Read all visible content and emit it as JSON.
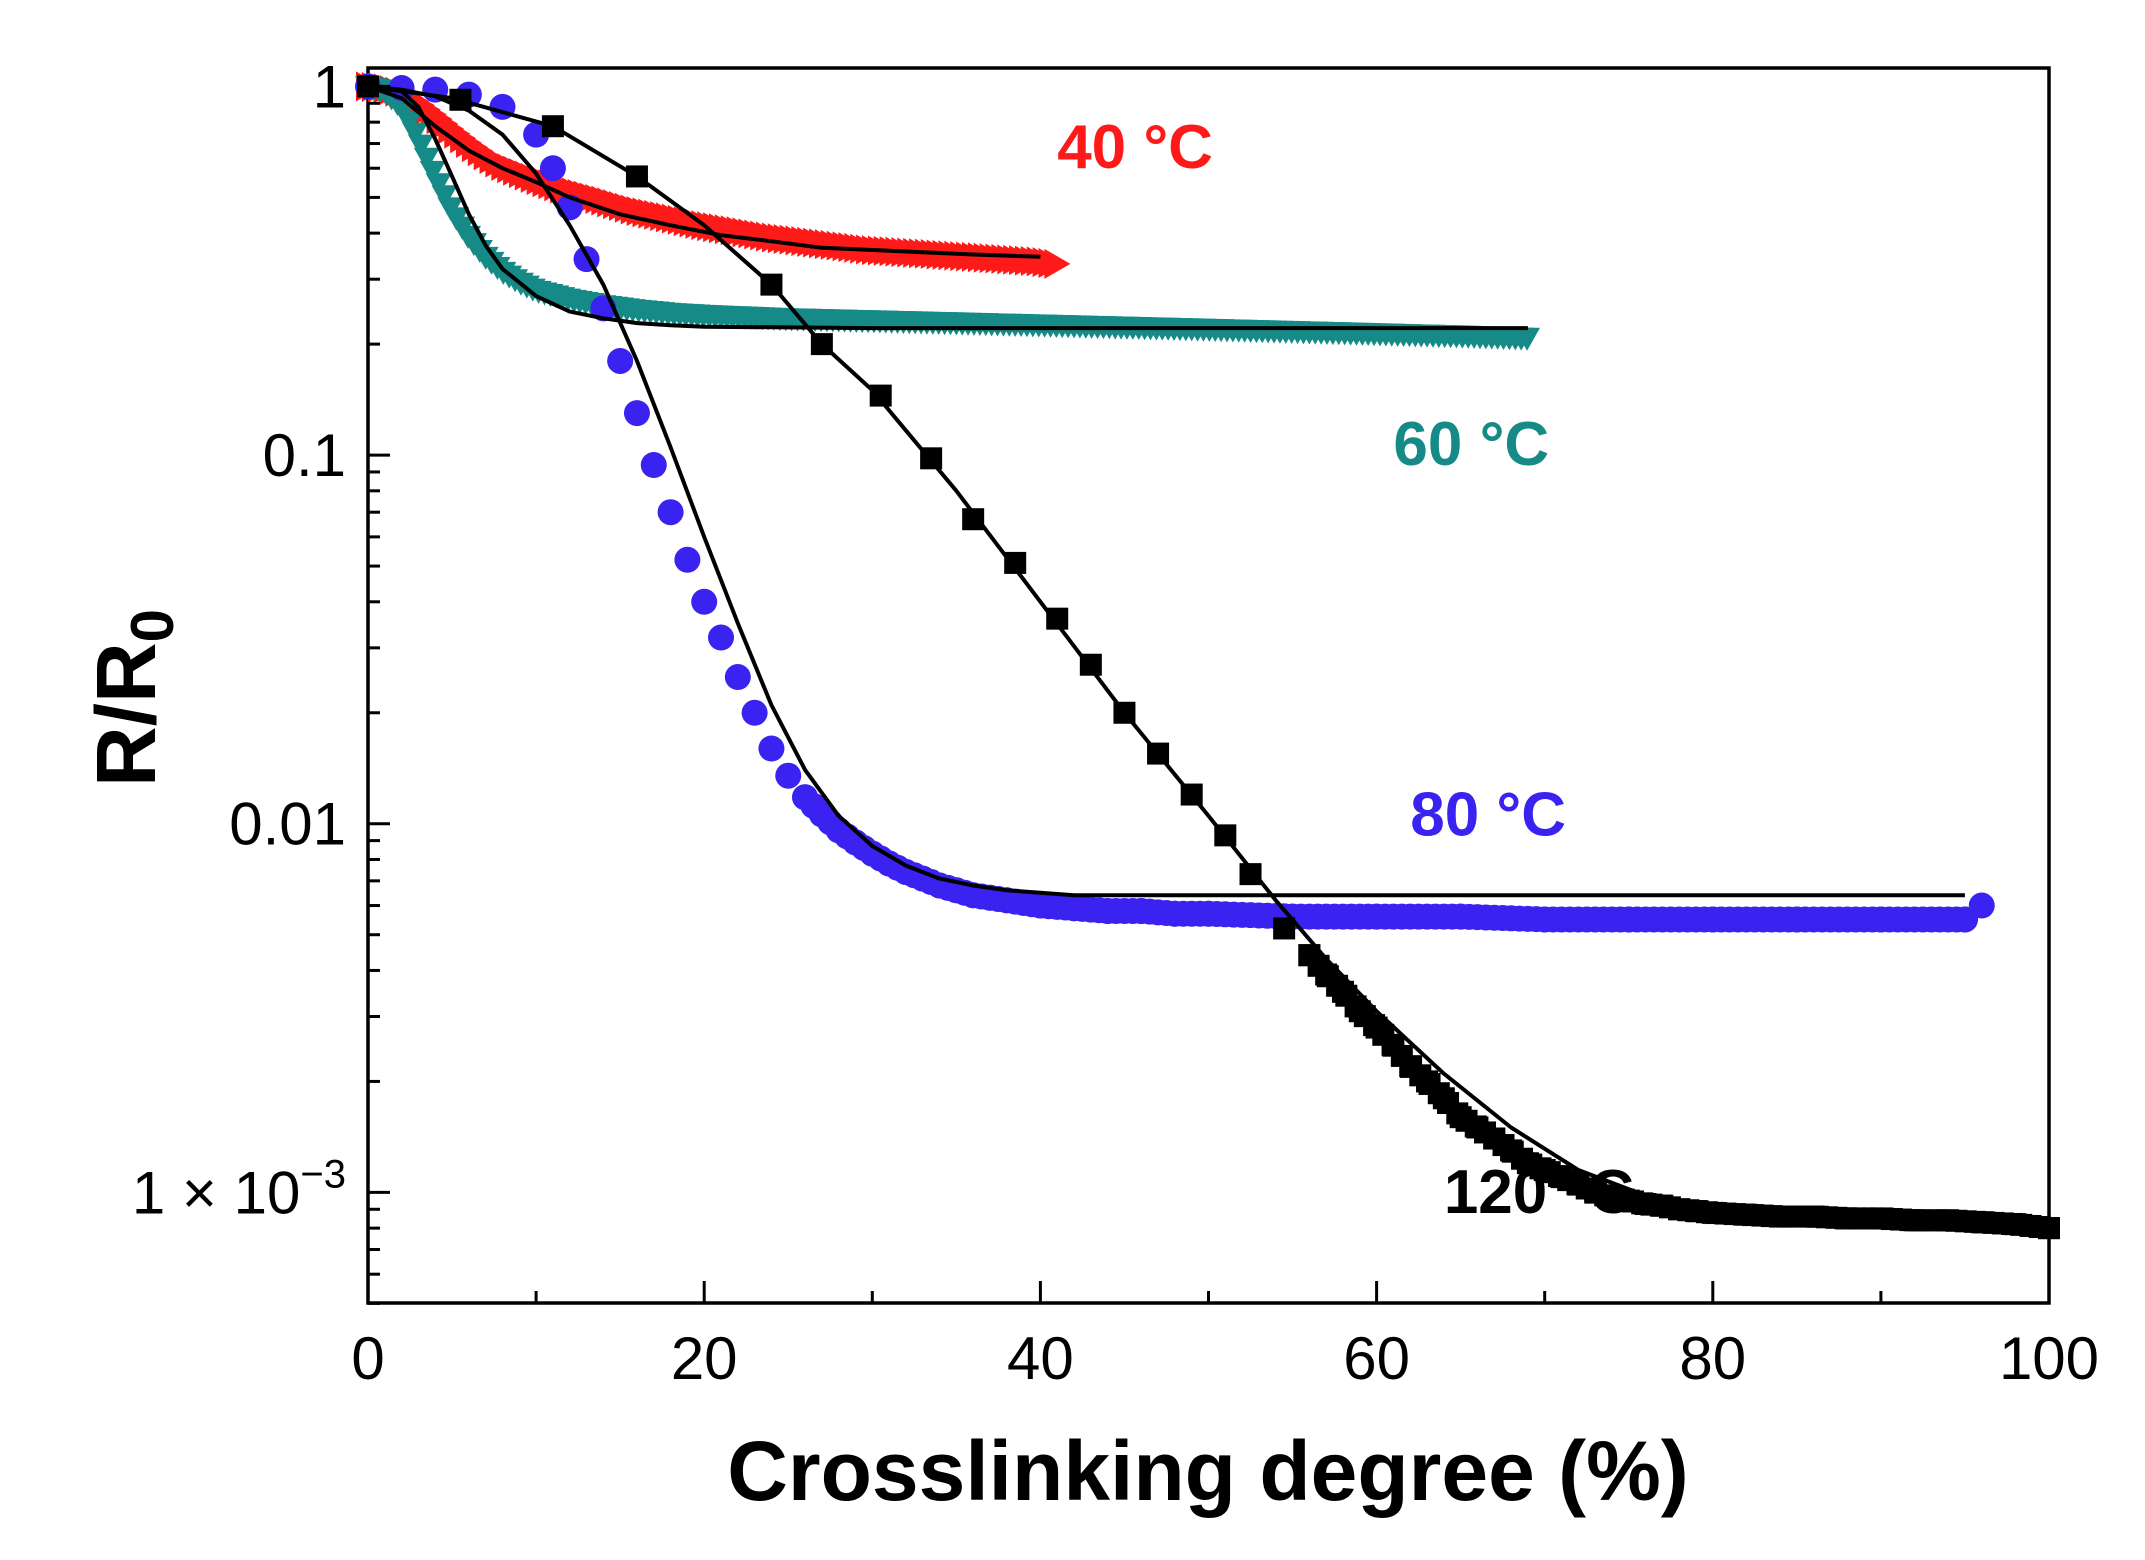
{
  "chart_data": {
    "type": "scatter",
    "title": "",
    "xlabel": "Crosslinking degree (%)",
    "ylabel": {
      "main": "R/R",
      "subscript": "0"
    },
    "xlim": [
      0,
      100
    ],
    "ylim_log10": [
      -3.3,
      0.05
    ],
    "yscale": "log",
    "x_ticks": [
      {
        "value": 0,
        "label": "0"
      },
      {
        "value": 20,
        "label": "20"
      },
      {
        "value": 40,
        "label": "40"
      },
      {
        "value": 60,
        "label": "60"
      },
      {
        "value": 80,
        "label": "80"
      },
      {
        "value": 100,
        "label": "100"
      }
    ],
    "y_ticks": [
      {
        "value": 1,
        "label": "1"
      },
      {
        "value": 0.1,
        "label": "0.1"
      },
      {
        "value": 0.01,
        "label": "0.01"
      },
      {
        "value": 0.001,
        "label": "1 × 10",
        "exponent": "−3"
      }
    ],
    "series": [
      {
        "name": "40 °C",
        "color": "#ff1a1a",
        "marker": "triangle-right",
        "x": [
          0,
          1,
          2,
          3,
          4,
          5,
          6,
          7,
          8,
          10,
          12,
          14,
          16,
          18,
          20,
          22,
          24,
          26,
          28,
          30,
          32,
          34,
          36,
          38,
          40,
          41
        ],
        "y": [
          1.0,
          0.99,
          0.96,
          0.9,
          0.83,
          0.76,
          0.7,
          0.65,
          0.61,
          0.56,
          0.52,
          0.49,
          0.46,
          0.44,
          0.42,
          0.405,
          0.39,
          0.38,
          0.37,
          0.36,
          0.355,
          0.35,
          0.345,
          0.34,
          0.335,
          0.33
        ],
        "fit": {
          "x": [
            0,
            2,
            4,
            6,
            8,
            10,
            12,
            15,
            18,
            21,
            24,
            27,
            30,
            33,
            36,
            40
          ],
          "y": [
            1.0,
            0.93,
            0.78,
            0.67,
            0.6,
            0.55,
            0.5,
            0.45,
            0.42,
            0.395,
            0.38,
            0.365,
            0.36,
            0.355,
            0.35,
            0.345
          ]
        }
      },
      {
        "name": "60 °C",
        "color": "#168a86",
        "marker": "triangle-down",
        "x": [
          0,
          1,
          2,
          3,
          4,
          5,
          6,
          7,
          8,
          9,
          10,
          12,
          14,
          16,
          18,
          20,
          25,
          30,
          35,
          40,
          45,
          50,
          55,
          60,
          65,
          69
        ],
        "y": [
          1.0,
          0.97,
          0.88,
          0.72,
          0.57,
          0.46,
          0.39,
          0.345,
          0.315,
          0.295,
          0.28,
          0.265,
          0.255,
          0.248,
          0.243,
          0.24,
          0.235,
          0.232,
          0.229,
          0.226,
          0.223,
          0.22,
          0.217,
          0.214,
          0.211,
          0.208
        ],
        "fit": {
          "x": [
            0,
            2,
            3,
            4,
            5,
            6,
            7,
            8,
            10,
            12,
            14,
            16,
            18,
            20,
            25,
            30,
            40,
            50,
            60,
            69
          ],
          "y": [
            1.0,
            0.97,
            0.88,
            0.72,
            0.57,
            0.45,
            0.37,
            0.32,
            0.27,
            0.245,
            0.235,
            0.228,
            0.225,
            0.223,
            0.222,
            0.221,
            0.221,
            0.221,
            0.221,
            0.221
          ]
        }
      },
      {
        "name": "80 °C",
        "color": "#3a22f0",
        "marker": "circle",
        "x": [
          0,
          2,
          4,
          6,
          8,
          10,
          11,
          12,
          13,
          14,
          15,
          16,
          17,
          18,
          19,
          20,
          21,
          22,
          23,
          24,
          25,
          26,
          27,
          28,
          29,
          30,
          31,
          32,
          33,
          34,
          35,
          36,
          37,
          38,
          39,
          40,
          42,
          44,
          46,
          48,
          50,
          55,
          60,
          65,
          70,
          75,
          80,
          85,
          90,
          95,
          96
        ],
        "y": [
          1.0,
          0.99,
          0.98,
          0.95,
          0.88,
          0.74,
          0.6,
          0.47,
          0.34,
          0.25,
          0.18,
          0.13,
          0.094,
          0.07,
          0.052,
          0.04,
          0.032,
          0.025,
          0.02,
          0.016,
          0.0135,
          0.0118,
          0.0106,
          0.0096,
          0.0089,
          0.0083,
          0.0078,
          0.0074,
          0.0071,
          0.0068,
          0.0066,
          0.0064,
          0.0063,
          0.0062,
          0.0061,
          0.006,
          0.0059,
          0.0058,
          0.0058,
          0.0057,
          0.0057,
          0.0056,
          0.0056,
          0.0056,
          0.0055,
          0.0055,
          0.0055,
          0.0055,
          0.0055,
          0.0055,
          0.006
        ],
        "fit": {
          "x": [
            0,
            2,
            4,
            6,
            8,
            10,
            12,
            14,
            16,
            18,
            20,
            22,
            24,
            26,
            28,
            30,
            32,
            34,
            36,
            38,
            40,
            42,
            45,
            50,
            60,
            70,
            80,
            90,
            95
          ],
          "y": [
            1.0,
            0.98,
            0.94,
            0.86,
            0.74,
            0.58,
            0.42,
            0.29,
            0.18,
            0.105,
            0.06,
            0.035,
            0.021,
            0.014,
            0.0105,
            0.0087,
            0.0077,
            0.0071,
            0.0068,
            0.0066,
            0.0065,
            0.0064,
            0.0064,
            0.0064,
            0.0064,
            0.0064,
            0.0064,
            0.0064,
            0.0064
          ]
        }
      },
      {
        "name": "120 °C",
        "color": "#000000",
        "marker": "square",
        "x": [
          0,
          5.5,
          11,
          16,
          24,
          27,
          30.5,
          33.5,
          36,
          38.5,
          41,
          43,
          45,
          47,
          49,
          51,
          52.5,
          54.5,
          56,
          57,
          58,
          59,
          60,
          61,
          62,
          63,
          64,
          65,
          66,
          67,
          68,
          69,
          70,
          71,
          72,
          73,
          74,
          75,
          76,
          77,
          78,
          79,
          80,
          82,
          84,
          86,
          88,
          90,
          92,
          94,
          96,
          98,
          100
        ],
        "y": [
          1.0,
          0.92,
          0.78,
          0.57,
          0.29,
          0.2,
          0.145,
          0.098,
          0.067,
          0.051,
          0.036,
          0.027,
          0.02,
          0.0155,
          0.012,
          0.0093,
          0.0073,
          0.0052,
          0.0044,
          0.0039,
          0.0035,
          0.0031,
          0.0028,
          0.0025,
          0.0022,
          0.002,
          0.0018,
          0.0016,
          0.0015,
          0.0014,
          0.0013,
          0.0012,
          0.00115,
          0.0011,
          0.00105,
          0.001,
          0.00097,
          0.00095,
          0.00093,
          0.00092,
          0.0009,
          0.00089,
          0.00088,
          0.00087,
          0.00086,
          0.00086,
          0.00085,
          0.00085,
          0.00084,
          0.00084,
          0.00083,
          0.00082,
          0.0008
        ],
        "fit": {
          "x": [
            0,
            5,
            11,
            16,
            20,
            24,
            27,
            30,
            35,
            40,
            45,
            50,
            54,
            57,
            60,
            64,
            68,
            72,
            76,
            80,
            85,
            90,
            95,
            100
          ],
          "y": [
            1.0,
            0.93,
            0.78,
            0.57,
            0.42,
            0.29,
            0.2,
            0.15,
            0.08,
            0.04,
            0.02,
            0.0105,
            0.0062,
            0.0043,
            0.0031,
            0.0021,
            0.0015,
            0.00115,
            0.00098,
            0.00092,
            0.00088,
            0.00086,
            0.00085,
            0.00084
          ]
        }
      }
    ],
    "annotations": [
      {
        "text": "40 °C",
        "series": "40 °C",
        "x": 41,
        "y": 0.6
      },
      {
        "text": "60 °C",
        "series": "60 °C",
        "x": 61,
        "y": 0.094
      },
      {
        "text": "80 °C",
        "series": "80 °C",
        "x": 62,
        "y": 0.0093
      },
      {
        "text": "120 °C",
        "series": "120 °C",
        "x": 64,
        "y": 0.00088
      }
    ]
  }
}
